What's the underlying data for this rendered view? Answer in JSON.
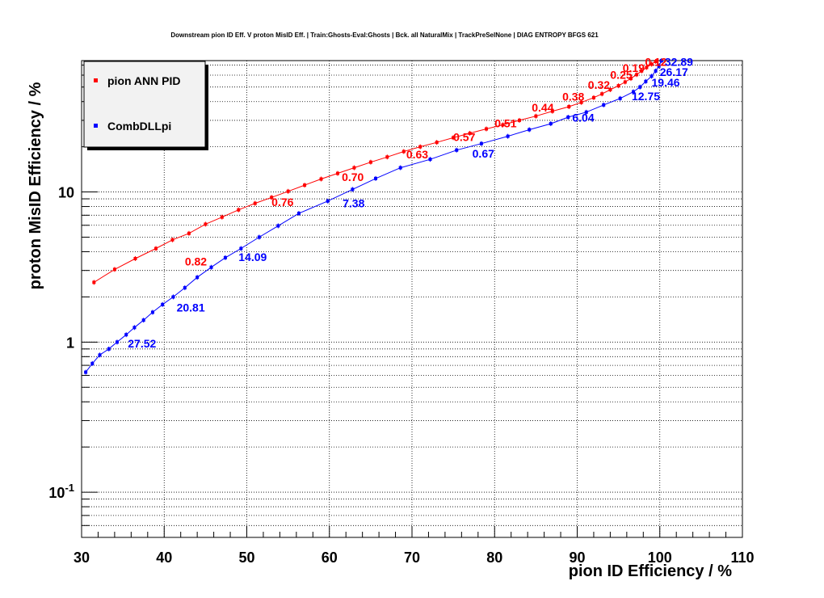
{
  "chart_data": {
    "type": "line",
    "title": "Downstream pion ID Eff. V proton MisID Eff. | Train:Ghosts-Eval:Ghosts | Bck. all NaturalMix | TrackPreSelNone | DIAG ENTROPY BFGS 621",
    "xlabel": "pion ID Efficiency / %",
    "ylabel": "proton MisID Efficiency / %",
    "xlim": [
      30,
      110
    ],
    "ylim": [
      0.05,
      75
    ],
    "y_scale": "log",
    "grid": true,
    "legend_position": "top-left",
    "x_tick_labels": [
      "30",
      "40",
      "50",
      "60",
      "70",
      "80",
      "90",
      "100",
      "110"
    ],
    "y_tick_labels": [
      {
        "base": "10",
        "exp": "-1",
        "value": 0.1
      },
      {
        "base": "1",
        "exp": "",
        "value": 1
      },
      {
        "base": "10",
        "exp": "",
        "value": 10
      }
    ],
    "series": [
      {
        "name": "pion ANN PID",
        "color": "#ff0000",
        "points": [
          [
            31.5,
            2.5
          ],
          [
            34,
            3.05
          ],
          [
            36.5,
            3.6
          ],
          [
            39,
            4.2
          ],
          [
            41,
            4.8
          ],
          [
            43,
            5.3
          ],
          [
            45,
            6.1
          ],
          [
            47,
            6.8
          ],
          [
            49,
            7.6
          ],
          [
            51,
            8.4
          ],
          [
            53,
            9.2
          ],
          [
            55,
            10.1
          ],
          [
            57,
            11.1
          ],
          [
            59,
            12.2
          ],
          [
            61,
            13.3
          ],
          [
            63,
            14.5
          ],
          [
            65,
            15.8
          ],
          [
            67,
            17.1
          ],
          [
            69,
            18.6
          ],
          [
            71,
            20.0
          ],
          [
            73,
            21.4
          ],
          [
            75,
            23.0
          ],
          [
            77,
            24.6
          ],
          [
            79,
            26.3
          ],
          [
            81,
            28.0
          ],
          [
            83,
            30.0
          ],
          [
            85,
            32.0
          ],
          [
            87,
            34.5
          ],
          [
            89,
            37.0
          ],
          [
            90.5,
            39.5
          ],
          [
            92,
            42.5
          ],
          [
            93,
            45.0
          ],
          [
            94,
            48.0
          ],
          [
            95,
            51.0
          ],
          [
            95.8,
            54.0
          ],
          [
            96.5,
            57.0
          ],
          [
            97.2,
            60.5
          ],
          [
            97.8,
            64.0
          ],
          [
            98.4,
            67.5
          ],
          [
            99,
            71.0
          ],
          [
            99.5,
            74.0
          ]
        ],
        "annotations": [
          {
            "x": 42.5,
            "y": 3.45,
            "label": "0.82"
          },
          {
            "x": 53.0,
            "y": 8.55,
            "label": "0.76"
          },
          {
            "x": 61.5,
            "y": 12.6,
            "label": "0.70"
          },
          {
            "x": 69.3,
            "y": 17.8,
            "label": "0.63"
          },
          {
            "x": 75.0,
            "y": 23.2,
            "label": "0.57"
          },
          {
            "x": 80.0,
            "y": 28.7,
            "label": "0.51"
          },
          {
            "x": 84.5,
            "y": 36.5,
            "label": "0.44"
          },
          {
            "x": 88.2,
            "y": 43.3,
            "label": "0.38"
          },
          {
            "x": 91.3,
            "y": 51.7,
            "label": "0.32"
          },
          {
            "x": 94.0,
            "y": 60.2,
            "label": "0.25"
          },
          {
            "x": 95.5,
            "y": 67.0,
            "label": "0.19"
          },
          {
            "x": 98.2,
            "y": 73.8,
            "label": "0.12"
          }
        ]
      },
      {
        "name": "CombDLLpi",
        "color": "#0000ff",
        "points": [
          [
            30.5,
            0.63
          ],
          [
            31.3,
            0.72
          ],
          [
            32.2,
            0.82
          ],
          [
            33.3,
            0.9
          ],
          [
            34.3,
            1.0
          ],
          [
            35.4,
            1.12
          ],
          [
            36.4,
            1.25
          ],
          [
            37.5,
            1.4
          ],
          [
            38.6,
            1.58
          ],
          [
            39.8,
            1.78
          ],
          [
            41.1,
            2.0
          ],
          [
            42.5,
            2.3
          ],
          [
            44.0,
            2.7
          ],
          [
            45.7,
            3.15
          ],
          [
            47.4,
            3.65
          ],
          [
            49.3,
            4.2
          ],
          [
            51.5,
            5.0
          ],
          [
            53.8,
            5.95
          ],
          [
            56.3,
            7.2
          ],
          [
            59.8,
            8.7
          ],
          [
            62.8,
            10.4
          ],
          [
            65.6,
            12.3
          ],
          [
            68.6,
            14.5
          ],
          [
            72.2,
            16.5
          ],
          [
            75.4,
            19.0
          ],
          [
            78.4,
            21.0
          ],
          [
            81.6,
            23.5
          ],
          [
            84.2,
            26.0
          ],
          [
            86.8,
            28.5
          ],
          [
            88.9,
            31.5
          ],
          [
            91.1,
            34.0
          ],
          [
            93.2,
            38.0
          ],
          [
            95.2,
            42.0
          ],
          [
            96.8,
            46.5
          ],
          [
            97.6,
            50.0
          ],
          [
            98.3,
            54.5
          ],
          [
            99.0,
            59.0
          ],
          [
            99.5,
            64.0
          ],
          [
            99.9,
            69.0
          ],
          [
            100.2,
            75.0
          ]
        ],
        "annotations": [
          {
            "x": 35.6,
            "y": 0.98,
            "label": "27.52"
          },
          {
            "x": 41.5,
            "y": 1.7,
            "label": "20.81"
          },
          {
            "x": 49.0,
            "y": 3.7,
            "label": "14.09"
          },
          {
            "x": 61.6,
            "y": 8.4,
            "label": "7.38"
          },
          {
            "x": 77.3,
            "y": 18.0,
            "label": "0.67"
          },
          {
            "x": 89.4,
            "y": 31.3,
            "label": "6.04"
          },
          {
            "x": 96.6,
            "y": 43.5,
            "label": "12.75"
          },
          {
            "x": 99.0,
            "y": 53.8,
            "label": "19.46"
          },
          {
            "x": 100.0,
            "y": 63.0,
            "label": "26.17"
          },
          {
            "x": 100.6,
            "y": 73.5,
            "label": "32.89"
          }
        ]
      }
    ]
  }
}
